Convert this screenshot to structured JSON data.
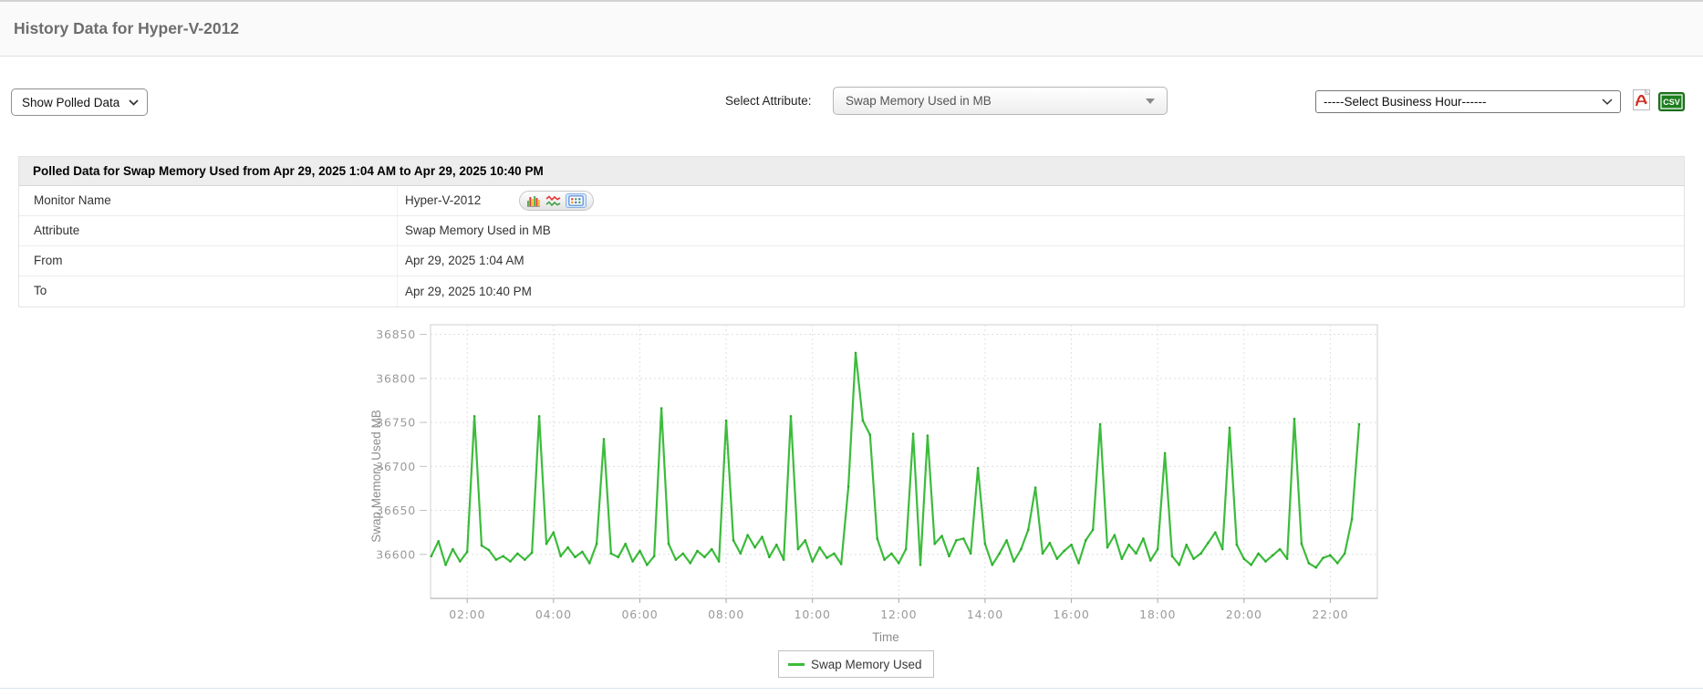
{
  "page": {
    "title": "History Data for Hyper-V-2012"
  },
  "toolbar": {
    "show_data_select": {
      "value": "Show Polled Data"
    },
    "attribute_label": "Select Attribute:",
    "attribute_select": {
      "value": "Swap Memory Used in MB"
    },
    "business_hour_select": {
      "value": "-----Select Business Hour------"
    },
    "export": {
      "pdf_icon": "pdf-export-icon",
      "csv_icon": "csv-export-icon",
      "csv_text": "CSV"
    }
  },
  "table": {
    "header": "Polled Data for Swap Memory Used from Apr 29, 2025 1:04 AM to Apr 29, 2025 10:40 PM",
    "rows": [
      {
        "label": "Monitor Name",
        "value": "Hyper-V-2012"
      },
      {
        "label": "Attribute",
        "value": "Swap Memory Used in MB"
      },
      {
        "label": "From",
        "value": "Apr 29, 2025 1:04 AM"
      },
      {
        "label": "To",
        "value": "Apr 29, 2025 10:40 PM"
      }
    ],
    "monitor_view_icons": [
      "bar-chart-view-icon",
      "line-chart-view-icon",
      "table-view-icon"
    ]
  },
  "chart_data": {
    "type": "line",
    "title": "",
    "xlabel": "Time",
    "ylabel": "Swap Memory Used MB",
    "legend": [
      "Swap Memory Used"
    ],
    "legend_position": "bottom",
    "grid": true,
    "line_color": "#3cbc3c",
    "marker_color": "#2aa82a",
    "axis_text_color": "#9a9a9a",
    "x_range_hours": [
      1.15,
      23.09
    ],
    "y_range": [
      36550,
      36861
    ],
    "x_ticks_hours": [
      2,
      4,
      6,
      8,
      10,
      12,
      14,
      16,
      18,
      20,
      22
    ],
    "x_tick_labels": [
      "02:00",
      "04:00",
      "06:00",
      "08:00",
      "10:00",
      "12:00",
      "14:00",
      "16:00",
      "18:00",
      "20:00",
      "22:00"
    ],
    "y_ticks": [
      36600,
      36650,
      36700,
      36750,
      36800,
      36850
    ],
    "series": [
      {
        "name": "Swap Memory Used",
        "points_min_val": [
          [
            70,
            36598
          ],
          [
            80,
            36615
          ],
          [
            90,
            36588
          ],
          [
            100,
            36606
          ],
          [
            110,
            36592
          ],
          [
            120,
            36603
          ],
          [
            130,
            36757
          ],
          [
            140,
            36610
          ],
          [
            150,
            36605
          ],
          [
            160,
            36594
          ],
          [
            170,
            36598
          ],
          [
            180,
            36592
          ],
          [
            190,
            36601
          ],
          [
            200,
            36594
          ],
          [
            210,
            36602
          ],
          [
            220,
            36757
          ],
          [
            230,
            36612
          ],
          [
            240,
            36625
          ],
          [
            250,
            36598
          ],
          [
            260,
            36608
          ],
          [
            270,
            36597
          ],
          [
            280,
            36603
          ],
          [
            290,
            36590
          ],
          [
            300,
            36612
          ],
          [
            310,
            36731
          ],
          [
            320,
            36601
          ],
          [
            330,
            36597
          ],
          [
            340,
            36612
          ],
          [
            350,
            36592
          ],
          [
            360,
            36604
          ],
          [
            370,
            36588
          ],
          [
            380,
            36598
          ],
          [
            390,
            36766
          ],
          [
            400,
            36612
          ],
          [
            410,
            36594
          ],
          [
            420,
            36601
          ],
          [
            430,
            36590
          ],
          [
            440,
            36604
          ],
          [
            450,
            36597
          ],
          [
            460,
            36606
          ],
          [
            470,
            36592
          ],
          [
            480,
            36752
          ],
          [
            490,
            36616
          ],
          [
            500,
            36601
          ],
          [
            510,
            36622
          ],
          [
            520,
            36608
          ],
          [
            530,
            36620
          ],
          [
            540,
            36597
          ],
          [
            550,
            36611
          ],
          [
            560,
            36594
          ],
          [
            570,
            36757
          ],
          [
            580,
            36606
          ],
          [
            590,
            36616
          ],
          [
            600,
            36592
          ],
          [
            610,
            36608
          ],
          [
            620,
            36596
          ],
          [
            630,
            36601
          ],
          [
            640,
            36589
          ],
          [
            650,
            36677
          ],
          [
            660,
            36829
          ],
          [
            670,
            36752
          ],
          [
            680,
            36736
          ],
          [
            690,
            36618
          ],
          [
            700,
            36594
          ],
          [
            710,
            36601
          ],
          [
            720,
            36590
          ],
          [
            730,
            36606
          ],
          [
            740,
            36737
          ],
          [
            750,
            36588
          ],
          [
            760,
            36735
          ],
          [
            770,
            36612
          ],
          [
            780,
            36621
          ],
          [
            790,
            36598
          ],
          [
            800,
            36616
          ],
          [
            810,
            36618
          ],
          [
            820,
            36601
          ],
          [
            830,
            36698
          ],
          [
            840,
            36612
          ],
          [
            850,
            36588
          ],
          [
            860,
            36601
          ],
          [
            870,
            36616
          ],
          [
            880,
            36592
          ],
          [
            890,
            36606
          ],
          [
            900,
            36628
          ],
          [
            910,
            36676
          ],
          [
            920,
            36601
          ],
          [
            930,
            36613
          ],
          [
            940,
            36595
          ],
          [
            950,
            36604
          ],
          [
            960,
            36611
          ],
          [
            970,
            36590
          ],
          [
            980,
            36616
          ],
          [
            990,
            36628
          ],
          [
            1000,
            36748
          ],
          [
            1010,
            36608
          ],
          [
            1020,
            36622
          ],
          [
            1030,
            36595
          ],
          [
            1040,
            36611
          ],
          [
            1050,
            36601
          ],
          [
            1060,
            36618
          ],
          [
            1070,
            36593
          ],
          [
            1080,
            36606
          ],
          [
            1090,
            36715
          ],
          [
            1100,
            36598
          ],
          [
            1110,
            36588
          ],
          [
            1120,
            36611
          ],
          [
            1130,
            36595
          ],
          [
            1140,
            36601
          ],
          [
            1150,
            36613
          ],
          [
            1160,
            36625
          ],
          [
            1170,
            36606
          ],
          [
            1180,
            36744
          ],
          [
            1190,
            36611
          ],
          [
            1200,
            36595
          ],
          [
            1210,
            36588
          ],
          [
            1220,
            36601
          ],
          [
            1230,
            36592
          ],
          [
            1240,
            36599
          ],
          [
            1250,
            36606
          ],
          [
            1260,
            36595
          ],
          [
            1270,
            36754
          ],
          [
            1280,
            36612
          ],
          [
            1290,
            36590
          ],
          [
            1300,
            36585
          ],
          [
            1310,
            36596
          ],
          [
            1320,
            36599
          ],
          [
            1330,
            36590
          ],
          [
            1340,
            36601
          ],
          [
            1350,
            36640
          ],
          [
            1360,
            36748
          ]
        ]
      }
    ]
  }
}
